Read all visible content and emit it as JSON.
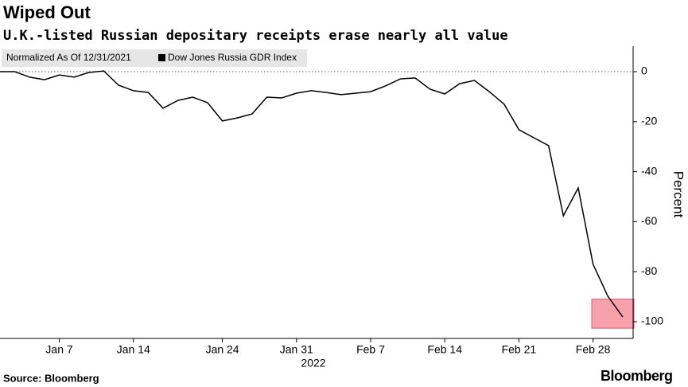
{
  "chart_data": {
    "type": "line",
    "title": "Wiped Out",
    "subtitle": "U.K.-listed Russian depositary receipts erase nearly all value",
    "legend_note": "Normalized As Of 12/31/2021",
    "year_label": "2022",
    "ylabel": "Percent",
    "source": "Source: Bloomberg",
    "logo": "Bloomberg",
    "categories": [
      null,
      null,
      null,
      null,
      "Jan 7",
      null,
      null,
      null,
      null,
      "Jan 14",
      null,
      null,
      null,
      null,
      null,
      "Jan 24",
      null,
      null,
      null,
      null,
      "Jan 31",
      null,
      null,
      null,
      null,
      "Feb 7",
      null,
      null,
      null,
      null,
      "Feb 14",
      null,
      null,
      null,
      null,
      "Feb 21",
      null,
      null,
      null,
      null,
      "Feb 28",
      null,
      null
    ],
    "series": [
      {
        "name": "Dow Jones Russia GDR Index",
        "color": "#000000",
        "values": [
          0,
          0,
          -2.2,
          -3.2,
          -1.3,
          -2.2,
          -0.3,
          0.3,
          -5.4,
          -7.6,
          -8.3,
          -14.6,
          -11.5,
          -10.2,
          -12.4,
          -19.7,
          -18.5,
          -16.9,
          -10.2,
          -10.5,
          -8.6,
          -7.6,
          -8.3,
          -9.2,
          -8.6,
          -8,
          -5.7,
          -2.9,
          -2.5,
          -7,
          -8.9,
          -4.8,
          -3.5,
          -8,
          -13,
          -23.2,
          -26.4,
          -29.6,
          -57.6,
          -46.5,
          -77,
          -89.8,
          -98.1
        ]
      }
    ],
    "ylim": [
      -106.7,
      10.2
    ],
    "yticks": [
      0,
      -20,
      -40,
      -60,
      -80,
      -100
    ],
    "highlight_ylim": [
      -102.6,
      -91
    ],
    "highlight_color": "#f7a1ad"
  }
}
